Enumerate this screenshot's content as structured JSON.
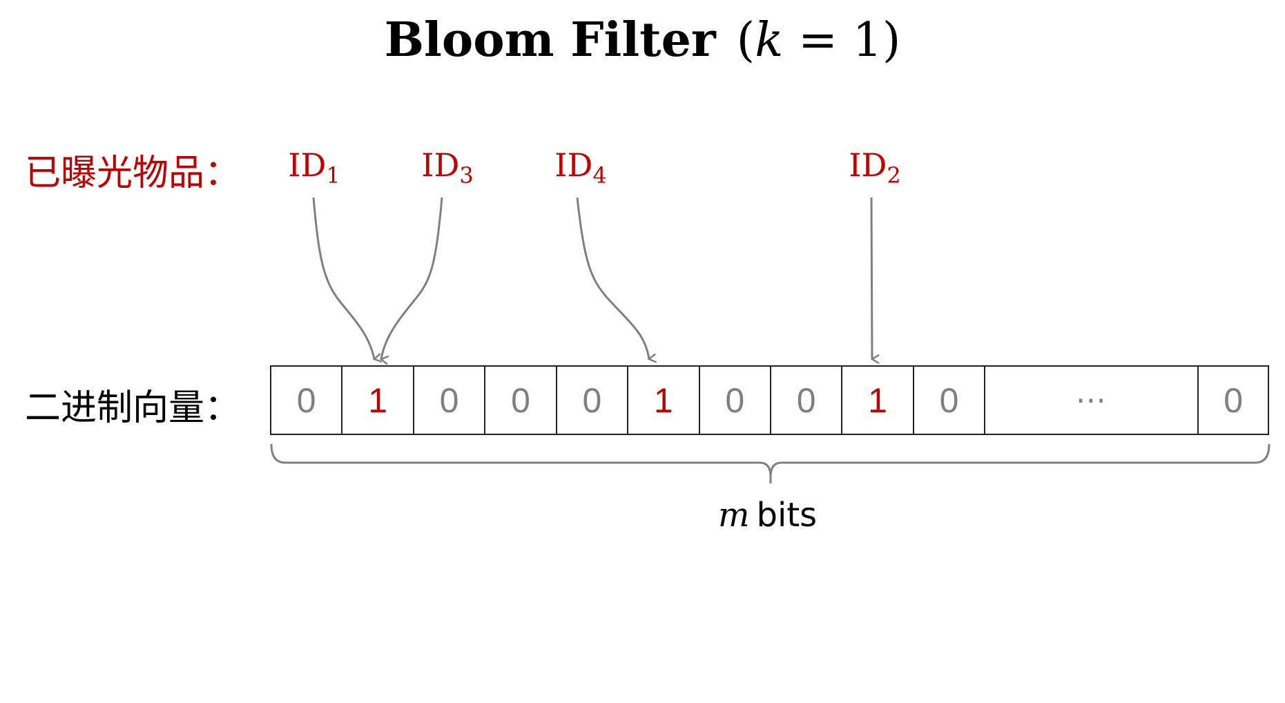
{
  "title": {
    "main": "Bloom  Filter",
    "param_open": "(",
    "param_var": "k",
    "param_rest": " = 1)"
  },
  "labels": {
    "exposed_items": "已曝光物品：",
    "binary_vector": "二进制向量："
  },
  "ids": [
    {
      "name": "ID",
      "sub": "1",
      "target_bit": 1
    },
    {
      "name": "ID",
      "sub": "3",
      "target_bit": 1
    },
    {
      "name": "ID",
      "sub": "4",
      "target_bit": 5
    },
    {
      "name": "ID",
      "sub": "2",
      "target_bit": 8
    }
  ],
  "bits": [
    "0",
    "1",
    "0",
    "0",
    "0",
    "1",
    "0",
    "0",
    "1",
    "0",
    "⋯",
    "0"
  ],
  "caption": {
    "var": "m",
    "text": "bits"
  },
  "colors": {
    "highlight": "#c00000",
    "zero": "#7f7f7f",
    "arrow": "#7f7f7f",
    "border": "#222222"
  }
}
